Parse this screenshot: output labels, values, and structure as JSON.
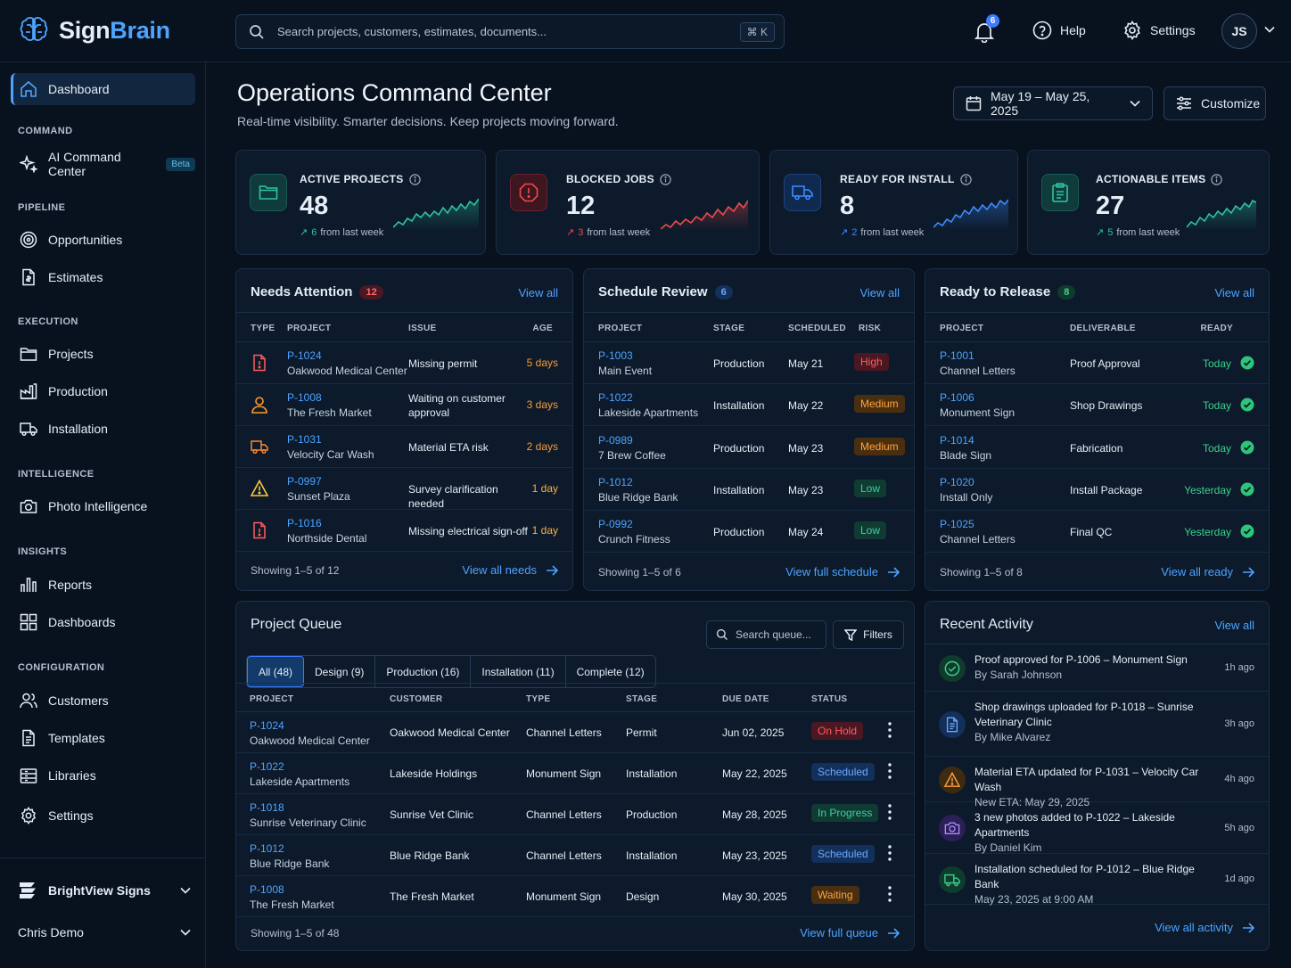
{
  "app": {
    "name_part1": "Sign",
    "name_part2": "Brain"
  },
  "topbar": {
    "search_placeholder": "Search projects, customers, estimates, documents...",
    "shortcut": "⌘ K",
    "notifications_count": "6",
    "help_label": "Help",
    "settings_label": "Settings",
    "avatar_initials": "JS"
  },
  "sidebar": {
    "dashboard": "Dashboard",
    "sections": {
      "command": "COMMAND",
      "pipeline": "PIPELINE",
      "execution": "EXECUTION",
      "intelligence": "INTELLIGENCE",
      "insights": "INSIGHTS",
      "configuration": "CONFIGURATION"
    },
    "items": {
      "ai_command_center": "AI Command Center",
      "beta": "Beta",
      "opportunities": "Opportunities",
      "estimates": "Estimates",
      "projects": "Projects",
      "production": "Production",
      "installation": "Installation",
      "photo_intelligence": "Photo Intelligence",
      "reports": "Reports",
      "dashboards": "Dashboards",
      "customers": "Customers",
      "templates": "Templates",
      "libraries": "Libraries",
      "settings": "Settings"
    },
    "org_name": "BrightView Signs",
    "user_name": "Chris Demo"
  },
  "header": {
    "title": "Operations Command Center",
    "subtitle": "Real-time visibility. Smarter decisions. Keep projects moving forward.",
    "date_range": "May 19 – May 25, 2025",
    "customize": "Customize"
  },
  "kpis": [
    {
      "label": "ACTIVE PROJECTS",
      "value": "48",
      "delta": "6",
      "delta_text": "from last week",
      "color": "#2ec4a0"
    },
    {
      "label": "BLOCKED JOBS",
      "value": "12",
      "delta": "3",
      "delta_text": "from last week",
      "color": "#f04a4a"
    },
    {
      "label": "READY FOR INSTALL",
      "value": "8",
      "delta": "2",
      "delta_text": "from last week",
      "color": "#3d8bff"
    },
    {
      "label": "ACTIONABLE ITEMS",
      "value": "27",
      "delta": "5",
      "delta_text": "from last week",
      "color": "#2ec4a0"
    }
  ],
  "needs_attention": {
    "title": "Needs Attention",
    "count": "12",
    "view_all": "View all",
    "columns": [
      "TYPE",
      "PROJECT",
      "ISSUE",
      "AGE"
    ],
    "rows": [
      {
        "id": "P-1024",
        "name": "Oakwood Medical Center",
        "issue": "Missing permit",
        "age": "5 days",
        "icon": "document-alert-icon"
      },
      {
        "id": "P-1008",
        "name": "The Fresh Market",
        "issue": "Waiting on customer approval",
        "age": "3 days",
        "icon": "person-icon"
      },
      {
        "id": "P-1031",
        "name": "Velocity Car Wash",
        "issue": "Material ETA risk",
        "age": "2 days",
        "icon": "truck-icon"
      },
      {
        "id": "P-0997",
        "name": "Sunset Plaza",
        "issue": "Survey clarification needed",
        "age": "1 day",
        "icon": "warning-icon"
      },
      {
        "id": "P-1016",
        "name": "Northside Dental",
        "issue": "Missing electrical sign-off",
        "age": "1 day",
        "icon": "document-alert-icon"
      }
    ],
    "footer": "Showing 1–5 of 12",
    "footer_link": "View all needs"
  },
  "schedule_review": {
    "title": "Schedule Review",
    "count": "6",
    "view_all": "View all",
    "columns": [
      "PROJECT",
      "STAGE",
      "SCHEDULED",
      "RISK"
    ],
    "rows": [
      {
        "id": "P-1003",
        "name": "Main Event",
        "stage": "Production",
        "scheduled": "May 21",
        "risk": "High"
      },
      {
        "id": "P-1022",
        "name": "Lakeside Apartments",
        "stage": "Installation",
        "scheduled": "May 22",
        "risk": "Medium"
      },
      {
        "id": "P-0989",
        "name": "7 Brew Coffee",
        "stage": "Production",
        "scheduled": "May 23",
        "risk": "Medium"
      },
      {
        "id": "P-1012",
        "name": "Blue Ridge Bank",
        "stage": "Installation",
        "scheduled": "May 23",
        "risk": "Low"
      },
      {
        "id": "P-0992",
        "name": "Crunch Fitness",
        "stage": "Production",
        "scheduled": "May 24",
        "risk": "Low"
      }
    ],
    "footer": "Showing 1–5 of 6",
    "footer_link": "View full schedule"
  },
  "ready_release": {
    "title": "Ready to Release",
    "count": "8",
    "view_all": "View all",
    "columns": [
      "PROJECT",
      "DELIVERABLE",
      "READY"
    ],
    "rows": [
      {
        "id": "P-1001",
        "name": "Channel Letters",
        "deliverable": "Proof Approval",
        "ready": "Today"
      },
      {
        "id": "P-1006",
        "name": "Monument Sign",
        "deliverable": "Shop Drawings",
        "ready": "Today"
      },
      {
        "id": "P-1014",
        "name": "Blade Sign",
        "deliverable": "Fabrication",
        "ready": "Today"
      },
      {
        "id": "P-1020",
        "name": "Install Only",
        "deliverable": "Install Package",
        "ready": "Yesterday"
      },
      {
        "id": "P-1025",
        "name": "Channel Letters",
        "deliverable": "Final QC",
        "ready": "Yesterday"
      }
    ],
    "footer": "Showing 1–5 of 8",
    "footer_link": "View all ready"
  },
  "queue": {
    "title": "Project Queue",
    "search_placeholder": "Search queue...",
    "filters": "Filters",
    "tabs": [
      "All (48)",
      "Design (9)",
      "Production (16)",
      "Installation (11)",
      "Complete (12)"
    ],
    "columns": [
      "PROJECT",
      "CUSTOMER",
      "TYPE",
      "STAGE",
      "DUE DATE",
      "STATUS"
    ],
    "rows": [
      {
        "id": "P-1024",
        "name": "Oakwood Medical Center",
        "customer": "Oakwood Medical Center",
        "type": "Channel Letters",
        "stage": "Permit",
        "due": "Jun 02, 2025",
        "status": "On Hold"
      },
      {
        "id": "P-1022",
        "name": "Lakeside Apartments",
        "customer": "Lakeside Holdings",
        "type": "Monument Sign",
        "stage": "Installation",
        "due": "May 22, 2025",
        "status": "Scheduled"
      },
      {
        "id": "P-1018",
        "name": "Sunrise Veterinary Clinic",
        "customer": "Sunrise Vet Clinic",
        "type": "Channel Letters",
        "stage": "Production",
        "due": "May 28, 2025",
        "status": "In Progress"
      },
      {
        "id": "P-1012",
        "name": "Blue Ridge Bank",
        "customer": "Blue Ridge Bank",
        "type": "Channel Letters",
        "stage": "Installation",
        "due": "May 23, 2025",
        "status": "Scheduled"
      },
      {
        "id": "P-1008",
        "name": "The Fresh Market",
        "customer": "The Fresh Market",
        "type": "Monument Sign",
        "stage": "Design",
        "due": "May 30, 2025",
        "status": "Waiting"
      }
    ],
    "footer": "Showing 1–5 of 48",
    "footer_link": "View full queue"
  },
  "activity": {
    "title": "Recent Activity",
    "view_all": "View all",
    "items": [
      {
        "text": "Proof approved for P-1006 – Monument Sign",
        "sub": "By Sarah Johnson",
        "time": "1h ago",
        "icon": "check-circle-icon"
      },
      {
        "text": "Shop drawings uploaded for P-1018 – Sunrise Veterinary Clinic",
        "sub": "By Mike Alvarez",
        "time": "3h ago",
        "icon": "document-icon"
      },
      {
        "text": "Material ETA updated for P-1031 – Velocity Car Wash",
        "sub": "New ETA: May 29, 2025",
        "time": "4h ago",
        "icon": "warning-icon"
      },
      {
        "text": "3 new photos added to P-1022 – Lakeside Apartments",
        "sub": "By Daniel Kim",
        "time": "5h ago",
        "icon": "camera-icon"
      },
      {
        "text": "Installation scheduled for P-1012 – Blue Ridge Bank",
        "sub": "May 23, 2025 at 9:00 AM",
        "time": "1d ago",
        "icon": "truck-icon"
      }
    ],
    "footer_link": "View all activity"
  }
}
